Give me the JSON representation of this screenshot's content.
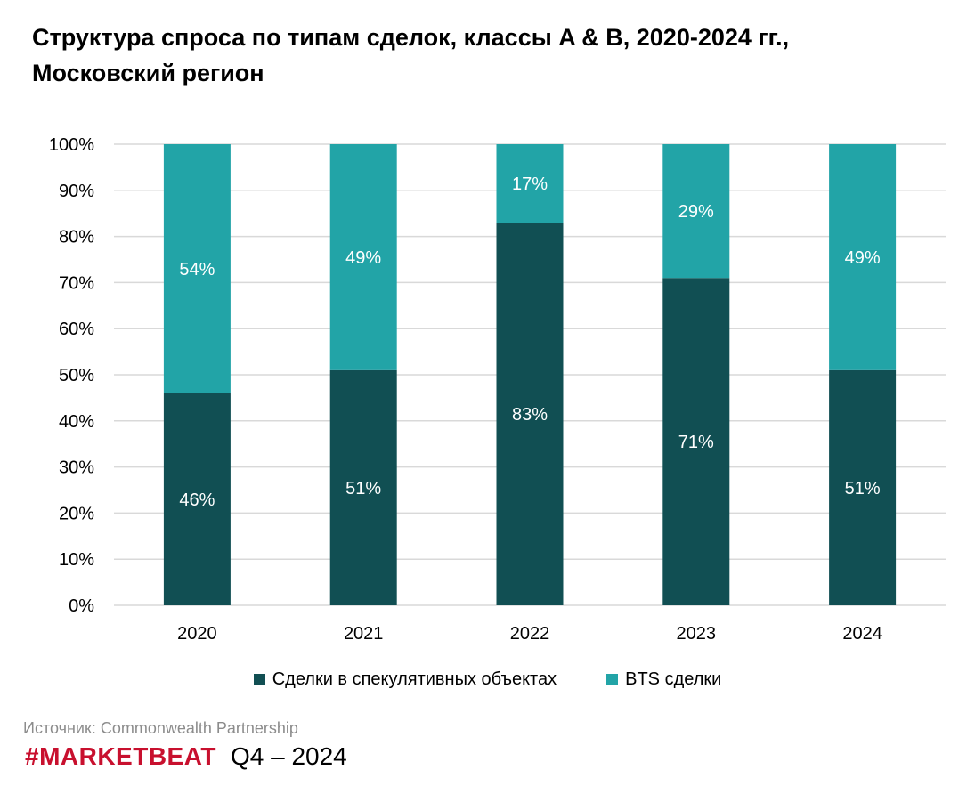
{
  "title": "Структура спроса по типам сделок, классы A & B, 2020-2024 гг., Московский регион",
  "source": "Источник: Commonwealth Partnership",
  "brand": "#MARKETBEAT",
  "period": "Q4 – 2024",
  "colors": {
    "speculative": "#114f53",
    "bts": "#22a4a7",
    "grid": "#d9d9d9",
    "brand": "#c8102e",
    "label": "#ffffff"
  },
  "chart_data": {
    "type": "bar",
    "stacked": true,
    "categories": [
      "2020",
      "2021",
      "2022",
      "2023",
      "2024"
    ],
    "series": [
      {
        "name": "Сделки в спекулятивных объектах",
        "values": [
          46,
          51,
          83,
          71,
          51
        ],
        "labels": [
          "46%",
          "51%",
          "83%",
          "71%",
          "51%"
        ]
      },
      {
        "name": "BTS сделки",
        "values": [
          54,
          49,
          17,
          29,
          49
        ],
        "labels": [
          "54%",
          "49%",
          "17%",
          "29%",
          "49%"
        ]
      }
    ],
    "ylim": [
      0,
      100
    ],
    "yticks": [
      "0%",
      "10%",
      "20%",
      "30%",
      "40%",
      "50%",
      "60%",
      "70%",
      "80%",
      "90%",
      "100%"
    ],
    "grid": true,
    "legend_position": "bottom"
  }
}
